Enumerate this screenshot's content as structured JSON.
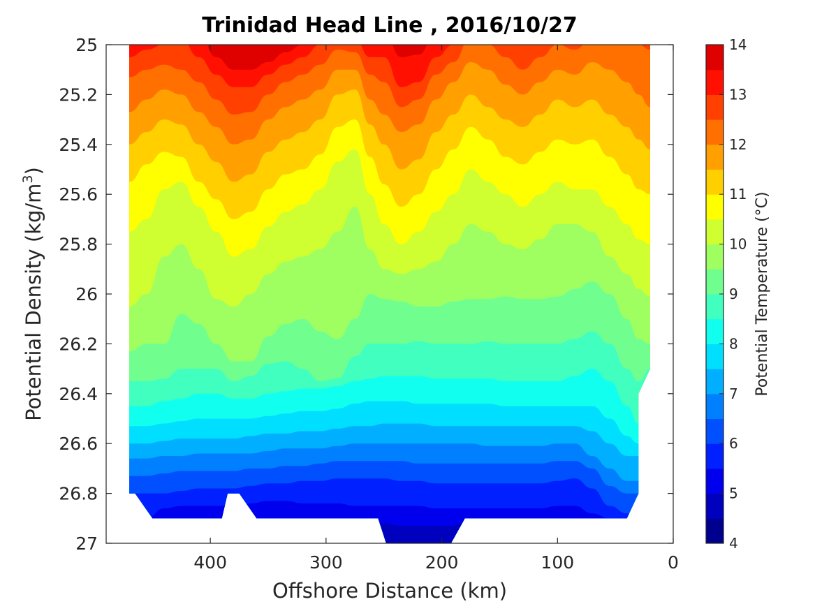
{
  "chart_data": {
    "type": "contour",
    "title": "Trinidad Head Line , 2016/10/27",
    "xlabel": "Offshore Distance (km)",
    "ylabel_main": "Potential Density (kg/m",
    "ylabel_sup": "3",
    "ylabel_close": ")",
    "xlim": [
      490,
      0
    ],
    "ylim": [
      25,
      27
    ],
    "xticks": [
      400,
      300,
      200,
      100,
      0
    ],
    "yticks": [
      25,
      25.2,
      25.4,
      25.6,
      25.8,
      26,
      26.2,
      26.4,
      26.6,
      26.8,
      27
    ],
    "data_extent_km": [
      470,
      20
    ],
    "colorbar": {
      "label": "Potential Temperature (°C)",
      "range": [
        4,
        14
      ],
      "ticks": [
        4,
        5,
        6,
        7,
        8,
        9,
        10,
        11,
        12,
        13,
        14
      ],
      "level_step": 0.5,
      "colors": [
        "#00008F",
        "#0000BF",
        "#0000EF",
        "#0020FF",
        "#0050FF",
        "#0080FF",
        "#00AFFF",
        "#00DFFF",
        "#10FFEF",
        "#40FFBF",
        "#70FF8F",
        "#9FFF60",
        "#CFFF30",
        "#FFFF00",
        "#FFCF00",
        "#FF9F00",
        "#FF7000",
        "#FF4000",
        "#FF1000",
        "#DF0000"
      ]
    },
    "x_stations": [
      470,
      455,
      440,
      425,
      410,
      395,
      380,
      365,
      350,
      335,
      320,
      305,
      290,
      275,
      262,
      250,
      235,
      220,
      205,
      190,
      175,
      160,
      145,
      130,
      115,
      100,
      85,
      70,
      55,
      40,
      30,
      20
    ],
    "isopycnal_levels": [
      {
        "temp": 13.5,
        "sigma": [
          24.95,
          24.95,
          24.95,
          24.95,
          24.95,
          24.95,
          25.07,
          25.07,
          25.05,
          25.0,
          24.95,
          24.95,
          24.95,
          24.95,
          24.95,
          24.95,
          25.03,
          25.02,
          24.95,
          24.95,
          24.95,
          24.95,
          24.95,
          24.95,
          24.95,
          24.95,
          24.95,
          24.95,
          24.95,
          24.95,
          24.95,
          24.95
        ]
      },
      {
        "temp": 13.0,
        "sigma": [
          24.95,
          24.95,
          24.95,
          24.95,
          24.95,
          25.05,
          25.1,
          25.1,
          25.07,
          25.03,
          25.0,
          24.98,
          24.95,
          24.95,
          24.95,
          24.95,
          25.05,
          25.04,
          24.95,
          24.95,
          24.95,
          24.95,
          24.95,
          24.95,
          24.95,
          24.95,
          24.95,
          24.95,
          24.95,
          24.95,
          24.95,
          24.95
        ]
      },
      {
        "temp": 12.5,
        "sigma": [
          25.05,
          25.02,
          25.0,
          24.98,
          25.05,
          25.12,
          25.17,
          25.17,
          25.12,
          25.08,
          25.05,
          25.0,
          24.97,
          24.98,
          25.05,
          25.05,
          25.17,
          25.15,
          25.05,
          25.0,
          24.95,
          24.95,
          24.95,
          24.95,
          24.95,
          24.95,
          24.95,
          24.95,
          24.95,
          24.95,
          24.95,
          24.95
        ]
      },
      {
        "temp": 12.0,
        "sigma": [
          25.13,
          25.1,
          25.08,
          25.1,
          25.15,
          25.22,
          25.28,
          25.27,
          25.2,
          25.15,
          25.12,
          25.08,
          25.02,
          25.03,
          25.12,
          25.15,
          25.25,
          25.22,
          25.12,
          25.07,
          24.97,
          25.0,
          25.05,
          25.1,
          25.05,
          25.0,
          25.02,
          24.97,
          24.95,
          24.95,
          25.0,
          25.02
        ]
      },
      {
        "temp": 11.5,
        "sigma": [
          25.27,
          25.22,
          25.18,
          25.2,
          25.27,
          25.33,
          25.4,
          25.38,
          25.3,
          25.25,
          25.22,
          25.18,
          25.1,
          25.1,
          25.22,
          25.28,
          25.35,
          25.32,
          25.22,
          25.15,
          25.07,
          25.1,
          25.16,
          25.2,
          25.15,
          25.1,
          25.12,
          25.07,
          25.1,
          25.15,
          25.2,
          25.25
        ]
      },
      {
        "temp": 11.0,
        "sigma": [
          25.4,
          25.35,
          25.3,
          25.32,
          25.4,
          25.47,
          25.55,
          25.52,
          25.43,
          25.38,
          25.35,
          25.3,
          25.2,
          25.18,
          25.32,
          25.4,
          25.5,
          25.46,
          25.35,
          25.28,
          25.2,
          25.25,
          25.3,
          25.33,
          25.28,
          25.22,
          25.25,
          25.22,
          25.28,
          25.33,
          25.38,
          25.42
        ]
      },
      {
        "temp": 10.5,
        "sigma": [
          25.55,
          25.48,
          25.43,
          25.45,
          25.55,
          25.62,
          25.7,
          25.67,
          25.58,
          25.52,
          25.5,
          25.44,
          25.33,
          25.3,
          25.45,
          25.56,
          25.65,
          25.6,
          25.5,
          25.42,
          25.33,
          25.38,
          25.45,
          25.48,
          25.43,
          25.38,
          25.4,
          25.38,
          25.45,
          25.52,
          25.58,
          25.6
        ]
      },
      {
        "temp": 10.0,
        "sigma": [
          25.75,
          25.7,
          25.58,
          25.55,
          25.65,
          25.75,
          25.85,
          25.82,
          25.73,
          25.67,
          25.64,
          25.58,
          25.47,
          25.42,
          25.6,
          25.72,
          25.8,
          25.75,
          25.67,
          25.6,
          25.5,
          25.55,
          25.6,
          25.65,
          25.6,
          25.55,
          25.58,
          25.58,
          25.65,
          25.72,
          25.78,
          25.8
        ]
      },
      {
        "temp": 9.5,
        "sigma": [
          26.05,
          26.0,
          25.85,
          25.8,
          25.9,
          26.02,
          26.05,
          26.0,
          25.92,
          25.87,
          25.85,
          25.82,
          25.75,
          25.65,
          25.82,
          25.9,
          25.92,
          25.9,
          25.87,
          25.8,
          25.72,
          25.75,
          25.8,
          25.82,
          25.78,
          25.72,
          25.72,
          25.75,
          25.85,
          25.92,
          25.98,
          26.01
        ]
      },
      {
        "temp": 9.0,
        "sigma": [
          26.23,
          26.2,
          26.2,
          26.08,
          26.12,
          26.2,
          26.27,
          26.27,
          26.17,
          26.12,
          26.1,
          26.15,
          26.18,
          26.1,
          26.0,
          26.02,
          26.03,
          26.05,
          26.05,
          26.03,
          26.02,
          26.02,
          26.01,
          26.02,
          26.02,
          26.01,
          25.98,
          25.95,
          26.0,
          26.1,
          26.18,
          26.2
        ]
      },
      {
        "temp": 8.5,
        "sigma": [
          26.35,
          26.35,
          26.34,
          26.3,
          26.3,
          26.3,
          26.35,
          26.33,
          26.28,
          26.27,
          26.3,
          26.35,
          26.34,
          26.25,
          26.2,
          26.2,
          26.2,
          26.19,
          26.2,
          26.2,
          26.2,
          26.19,
          26.2,
          26.2,
          26.2,
          26.2,
          26.18,
          26.15,
          26.2,
          26.3,
          26.35,
          26.3
        ]
      },
      {
        "temp": 8.0,
        "sigma": [
          26.45,
          26.45,
          26.43,
          26.42,
          26.4,
          26.4,
          26.42,
          26.42,
          26.4,
          26.39,
          26.38,
          26.38,
          26.37,
          26.35,
          26.34,
          26.33,
          26.33,
          26.33,
          26.34,
          26.34,
          26.34,
          26.34,
          26.35,
          26.35,
          26.35,
          26.35,
          26.33,
          26.3,
          26.35,
          26.45,
          26.52,
          26.52
        ]
      },
      {
        "temp": 7.5,
        "sigma": [
          26.53,
          26.53,
          26.52,
          26.51,
          26.5,
          26.5,
          26.5,
          26.5,
          26.49,
          26.48,
          26.47,
          26.47,
          26.46,
          26.44,
          26.43,
          26.43,
          26.43,
          26.44,
          26.44,
          26.44,
          26.44,
          26.44,
          26.45,
          26.45,
          26.45,
          26.45,
          26.45,
          26.45,
          26.5,
          26.57,
          26.6,
          26.6
        ]
      },
      {
        "temp": 7.0,
        "sigma": [
          26.6,
          26.6,
          26.59,
          26.58,
          26.58,
          26.58,
          26.58,
          26.57,
          26.56,
          26.56,
          26.55,
          26.55,
          26.54,
          26.53,
          26.53,
          26.52,
          26.52,
          26.52,
          26.53,
          26.53,
          26.53,
          26.53,
          26.53,
          26.53,
          26.53,
          26.53,
          26.53,
          26.55,
          26.6,
          26.65,
          26.65,
          26.65
        ]
      },
      {
        "temp": 6.5,
        "sigma": [
          26.66,
          26.66,
          26.65,
          26.65,
          26.64,
          26.64,
          26.64,
          26.64,
          26.63,
          26.62,
          26.62,
          26.62,
          26.61,
          26.6,
          26.6,
          26.6,
          26.6,
          26.6,
          26.6,
          26.6,
          26.6,
          26.61,
          26.61,
          26.61,
          26.61,
          26.6,
          26.6,
          26.65,
          26.7,
          26.75,
          26.75,
          26.75
        ]
      },
      {
        "temp": 6.0,
        "sigma": [
          26.73,
          26.73,
          26.72,
          26.71,
          26.71,
          26.71,
          26.71,
          26.7,
          26.7,
          26.69,
          26.69,
          26.68,
          26.67,
          26.67,
          26.67,
          26.67,
          26.67,
          26.68,
          26.68,
          26.68,
          26.68,
          26.68,
          26.68,
          26.68,
          26.68,
          26.67,
          26.67,
          26.7,
          26.77,
          26.8,
          26.8,
          26.8
        ]
      },
      {
        "temp": 5.5,
        "sigma": [
          26.8,
          26.8,
          26.8,
          26.79,
          26.78,
          26.78,
          26.78,
          26.77,
          26.76,
          26.76,
          26.75,
          26.75,
          26.74,
          26.74,
          26.74,
          26.74,
          26.75,
          26.75,
          26.76,
          26.76,
          26.76,
          26.76,
          26.76,
          26.76,
          26.76,
          26.75,
          26.74,
          26.78,
          26.85,
          26.88,
          26.88,
          26.88
        ]
      },
      {
        "temp": 5.0,
        "sigma": [
          26.9,
          26.9,
          26.86,
          26.85,
          26.85,
          26.85,
          26.85,
          26.84,
          26.83,
          26.83,
          26.84,
          26.84,
          26.84,
          26.85,
          26.85,
          26.85,
          26.85,
          26.85,
          26.86,
          26.86,
          26.86,
          26.86,
          26.86,
          26.86,
          26.86,
          26.85,
          26.85,
          26.88,
          26.9,
          26.9,
          26.9,
          26.9
        ]
      },
      {
        "temp": 4.5,
        "sigma": [
          26.9,
          26.9,
          26.9,
          26.9,
          26.9,
          26.9,
          26.9,
          26.9,
          26.9,
          26.9,
          26.9,
          26.9,
          26.9,
          26.9,
          26.9,
          26.92,
          26.93,
          26.93,
          26.93,
          26.93,
          26.9,
          26.9,
          26.9,
          26.9,
          26.9,
          26.9,
          26.9,
          26.9,
          26.9,
          26.9,
          26.9,
          26.9
        ]
      }
    ],
    "bottom_boundary": [
      [
        470,
        26.8
      ],
      [
        465,
        26.8
      ],
      [
        450,
        26.9
      ],
      [
        390,
        26.9
      ],
      [
        385,
        26.8
      ],
      [
        375,
        26.8
      ],
      [
        360,
        26.9
      ],
      [
        255,
        26.9
      ],
      [
        248,
        27.0
      ],
      [
        192,
        27.0
      ],
      [
        180,
        26.9
      ],
      [
        40,
        26.9
      ],
      [
        30,
        26.8
      ],
      [
        30,
        26.4
      ],
      [
        20,
        26.3
      ],
      [
        20,
        24.95
      ],
      [
        470,
        24.95
      ]
    ]
  }
}
